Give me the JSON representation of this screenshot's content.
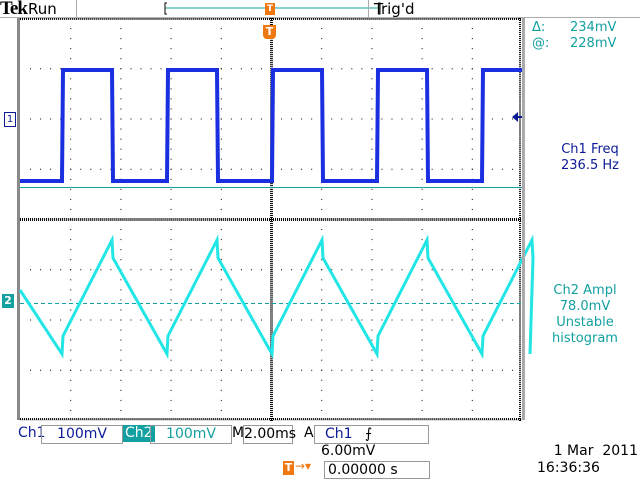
{
  "header": {
    "brand": "Tek",
    "run_state": "Run",
    "trigger_status": "Trig'd"
  },
  "cursor_readout": {
    "delta_label": "Δ:",
    "delta_value": "234mV",
    "at_label": "@:",
    "at_value": "228mV"
  },
  "measurements": {
    "ch1": {
      "line1": "Ch1 Freq",
      "line2": "236.5 Hz"
    },
    "ch2": {
      "line1": "Ch2 Ampl",
      "line2": "78.0mV",
      "line3": "Unstable",
      "line4": "histogram"
    }
  },
  "markers": {
    "ch1": "1",
    "ch2": "2",
    "trigger": "T"
  },
  "status_bar": {
    "ch1_label": "Ch1",
    "ch1_scale": "100mV",
    "ch2_label": "Ch2",
    "ch2_scale": "100mV",
    "timebase_label": "M",
    "timebase": "2.00ms",
    "trigger_mode": "A",
    "trigger_source": "Ch1",
    "trigger_slope_icon": "rising-edge-icon",
    "trigger_level": "6.00mV"
  },
  "trigger_position": {
    "value": "0.00000 s"
  },
  "datetime": {
    "date": "1 Mar  2011",
    "time": "16:36:36"
  },
  "colors": {
    "ch1": "#0d1a96",
    "ch1_trace": "#1a2fe0",
    "ch2": "#13a0a0",
    "ch2_trace": "#22e6e6",
    "trigger": "#f07810"
  }
}
